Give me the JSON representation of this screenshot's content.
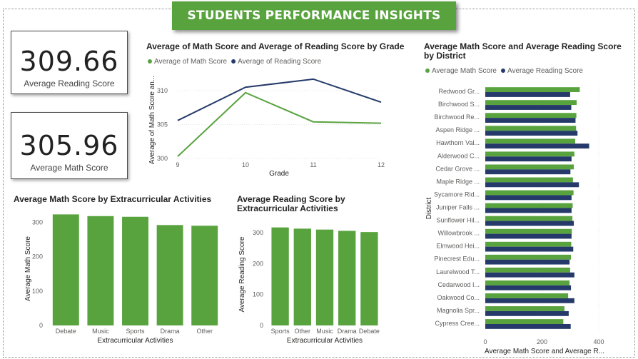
{
  "header": {
    "title": "STUDENTS PERFORMANCE INSIGHTS"
  },
  "kpis": [
    {
      "value": "309.66",
      "label": "Average Reading Score"
    },
    {
      "value": "305.96",
      "label": "Average Math Score"
    }
  ],
  "colors": {
    "math": "#59a33f",
    "reading": "#253a6a",
    "banner": "#59a33f"
  },
  "chart_data": [
    {
      "type": "line",
      "title": "Average of Math Score and Average of Reading Score by Grade",
      "xlabel": "Grade",
      "ylabel": "Average of Math Score an...",
      "x": [
        "9",
        "10",
        "11",
        "12"
      ],
      "ylim": [
        300,
        312
      ],
      "yticks": [
        "300",
        "305",
        "310"
      ],
      "series": [
        {
          "name": "Average of Math Score",
          "values": [
            300.3,
            309.7,
            305.4,
            305.2
          ]
        },
        {
          "name": "Average of Reading Score",
          "values": [
            305.6,
            310.5,
            311.7,
            308.3
          ]
        }
      ]
    },
    {
      "type": "bar",
      "title": "Average Math Score by Extracurricular Activities",
      "xlabel": "Extracurricular Activities",
      "ylabel": "Average Math Score",
      "categories": [
        "Debate",
        "Music",
        "Sports",
        "Drama",
        "Other"
      ],
      "values": [
        323,
        318,
        316,
        292,
        290
      ],
      "ylim": [
        0,
        330
      ],
      "yticks": [
        "0",
        "100",
        "200",
        "300"
      ]
    },
    {
      "type": "bar",
      "title_lines": [
        "Average Reading Score by",
        "Extracurricular Activities"
      ],
      "xlabel": "Extracurricular Activities",
      "ylabel": "Average Reading Score",
      "categories": [
        "Sports",
        "Other",
        "Music",
        "Drama",
        "Debate"
      ],
      "values": [
        317,
        313,
        310,
        306,
        302
      ],
      "ylim": [
        0,
        330
      ],
      "yticks": [
        "0",
        "100",
        "200",
        "300"
      ]
    },
    {
      "type": "bar",
      "orientation": "horizontal",
      "title_lines": [
        "Average Math Score and Average Reading Score",
        "by District"
      ],
      "xlabel": "Average Math Score and Average R...",
      "ylabel": "District",
      "xlim": [
        0,
        420
      ],
      "xticks": [
        "0",
        "200",
        "400"
      ],
      "categories": [
        "Redwood Gr...",
        "Birchwood S...",
        "Birchwood Re...",
        "Aspen Ridge ...",
        "Hawthorn Val...",
        "Alderwood C...",
        "Cedar Grove ...",
        "Maple Ridge ...",
        "Sycamore Rid...",
        "Juniper Falls ...",
        "Sunflower Hil...",
        "Willowbrook ...",
        "Elmwood Hei...",
        "Pinecrest Edu...",
        "Laurelwood T...",
        "Cedarwood I...",
        "Oakwood Co...",
        "Magnolia Spr...",
        "Cypress Cree..."
      ],
      "series": [
        {
          "name": "Average Math Score",
          "values": [
            333,
            322,
            321,
            320,
            317,
            314,
            312,
            309,
            311,
            308,
            307,
            305,
            303,
            302,
            299,
            297,
            292,
            279,
            275
          ]
        },
        {
          "name": "Average Reading Score",
          "values": [
            299,
            303,
            318,
            325,
            366,
            304,
            300,
            330,
            304,
            304,
            312,
            304,
            310,
            297,
            314,
            302,
            314,
            294,
            301
          ]
        }
      ]
    }
  ]
}
